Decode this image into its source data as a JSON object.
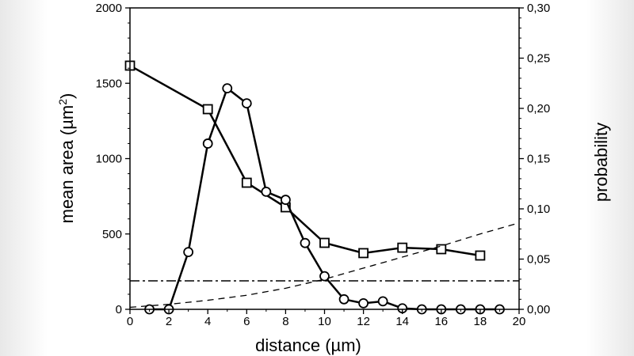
{
  "chart_data": {
    "type": "line",
    "xlabel": "distance (µm)",
    "ylabel_left": "mean area (µm",
    "ylabel_left_sup": "2",
    "ylabel_left_close": ")",
    "ylabel_right": "probability",
    "xlim": [
      0,
      20
    ],
    "ylim_left": [
      0,
      2000
    ],
    "ylim_right": [
      0,
      0.3
    ],
    "x_ticks": [
      "0",
      "2",
      "4",
      "6",
      "8",
      "10",
      "12",
      "14",
      "16",
      "18",
      "20"
    ],
    "y_left_ticks": [
      "0",
      "500",
      "1000",
      "1500",
      "2000"
    ],
    "y_right_ticks": [
      "0,00",
      "0,05",
      "0,10",
      "0,15",
      "0,20",
      "0,25",
      "0,30"
    ],
    "series": [
      {
        "name": "mean area",
        "axis": "left",
        "marker": "square",
        "x": [
          0,
          4,
          6,
          8,
          10,
          12,
          14,
          16,
          18
        ],
        "y": [
          1617,
          1328,
          840,
          677,
          441,
          373,
          409,
          399,
          357
        ]
      },
      {
        "name": "probability",
        "axis": "right",
        "marker": "circle",
        "x": [
          1,
          2,
          3,
          4,
          5,
          6,
          7,
          8,
          9,
          10,
          11,
          12,
          13,
          14,
          15,
          16,
          17,
          18,
          19
        ],
        "y": [
          0,
          0,
          0.057,
          0.165,
          0.22,
          0.205,
          0.117,
          0.109,
          0.066,
          0.033,
          0.01,
          0.006,
          0.008,
          0.001,
          0,
          0,
          0,
          0,
          0
        ]
      },
      {
        "name": "dashed curve",
        "axis": "right",
        "style": "dashed",
        "x": [
          0,
          2,
          4,
          6,
          8,
          10,
          12,
          14,
          16,
          18,
          20
        ],
        "y": [
          0.002,
          0.005,
          0.009,
          0.014,
          0.021,
          0.03,
          0.041,
          0.052,
          0.063,
          0.075,
          0.086
        ]
      },
      {
        "name": "dash-dot threshold",
        "axis": "left",
        "style": "dashdot",
        "x": [
          0,
          20
        ],
        "y": [
          189,
          189
        ]
      }
    ]
  }
}
